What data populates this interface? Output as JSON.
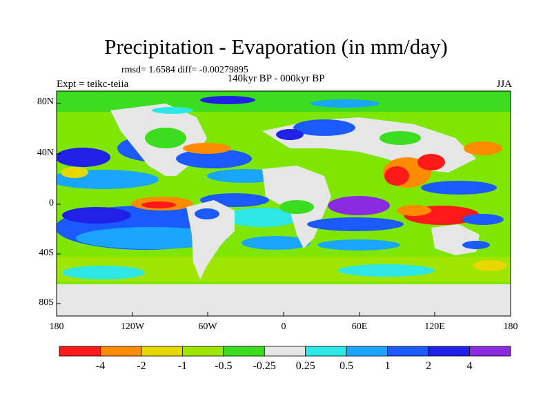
{
  "title": "Precipitation - Evaporation (in mm/day)",
  "stats": "rmsd= 1.6584 diff= -0.00279895",
  "period": "140kyr BP - 000kyr BP",
  "experiment": "Expt = teikc-teiia",
  "season": "JJA",
  "lat_ticks": [
    "80N",
    "40N",
    "0",
    "40S",
    "80S"
  ],
  "lon_ticks": [
    "180",
    "120W",
    "60W",
    "0",
    "60E",
    "120E",
    "180"
  ],
  "colorbar": {
    "colors": [
      "#ff1a1a",
      "#ff8c00",
      "#e6d800",
      "#9ee600",
      "#3cdc1e",
      "#e6e6e6",
      "#2de6e6",
      "#1aa6ff",
      "#1a5aff",
      "#2020e6",
      "#8a2be2"
    ],
    "labels": [
      "-4",
      "-2",
      "-1",
      "-0.5",
      "-0.25",
      "0.25",
      "0.5",
      "1",
      "2",
      "4"
    ]
  }
}
